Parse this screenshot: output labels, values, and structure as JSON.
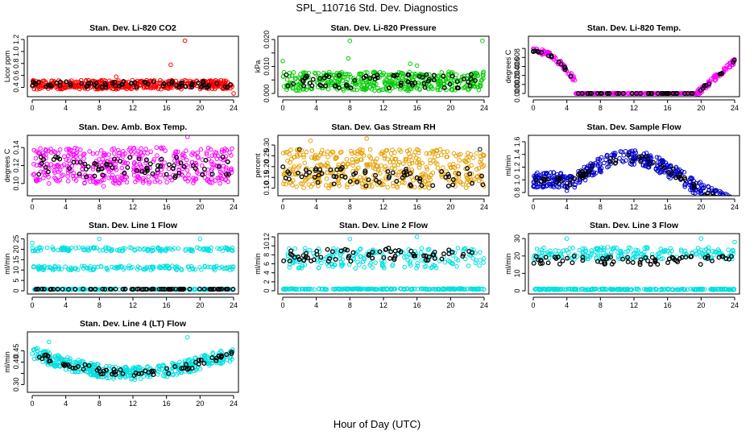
{
  "figure": {
    "title": "SPL_110716  Std. Dev. Diagnostics",
    "xlabel": "Hour of Day (UTC)"
  },
  "chart_data": [
    {
      "type": "scatter",
      "title": "Stan. Dev. Li-820 CO2",
      "ylabel": "Licor ppm",
      "xlim": [
        0,
        24
      ],
      "ylim": [
        0.3,
        1.2
      ],
      "xticks": [
        0,
        4,
        8,
        12,
        16,
        20,
        24
      ],
      "yticks": [
        0.4,
        0.6,
        0.8,
        1.0,
        1.2
      ],
      "ytick_labels": [
        "0.4",
        "0.6",
        "0.8",
        "1.0",
        "1.2"
      ],
      "series": [
        {
          "color": "#ff0000",
          "bands": [
            [
              0.37,
              0.52
            ]
          ],
          "outliers": [
            [
              18.2,
              1.18
            ],
            [
              16.5,
              0.78
            ],
            [
              24,
              0.3
            ],
            [
              10,
              0.58
            ]
          ]
        },
        {
          "color": "#000000",
          "bands": [
            [
              0.4,
              0.5
            ]
          ],
          "outliers": []
        }
      ]
    },
    {
      "type": "scatter",
      "title": "Stan. Dev. Li-820 Pressure",
      "ylabel": "kPa",
      "xlim": [
        0,
        24
      ],
      "ylim": [
        0,
        0.02
      ],
      "xticks": [
        0,
        4,
        8,
        12,
        16,
        20,
        24
      ],
      "yticks": [
        0,
        0.005,
        0.01,
        0.015,
        0.02
      ],
      "ytick_labels": [
        "0.000",
        "",
        "0.010",
        "",
        "0.020"
      ],
      "series": [
        {
          "color": "#00cc00",
          "bands": [
            [
              0.001,
              0.008
            ]
          ],
          "outliers": [
            [
              8,
              0.0195
            ],
            [
              16,
              0.0103
            ],
            [
              23.8,
              0.0195
            ],
            [
              0,
              0.012
            ],
            [
              7.8,
              0.013
            ],
            [
              15.2,
              0.011
            ]
          ]
        },
        {
          "color": "#000000",
          "bands": [
            [
              0.002,
              0.007
            ]
          ],
          "outliers": []
        }
      ]
    },
    {
      "type": "scatter",
      "title": "Stan. Dev. Li-820 Temp.",
      "ylabel": "degrees C",
      "xlim": [
        0,
        24
      ],
      "ylim": [
        0,
        0.012
      ],
      "xticks": [
        0,
        4,
        8,
        12,
        16,
        20,
        24
      ],
      "yticks": [
        0,
        0.002,
        0.004,
        0.006,
        0.008,
        0.01
      ],
      "ytick_labels": [
        "0.000",
        "0.002",
        "0.004",
        "0.006",
        "0.008",
        ""
      ],
      "curve": "temp",
      "series": [
        {
          "color": "#ff00ff",
          "bands": [],
          "outliers": []
        },
        {
          "color": "#000000",
          "bands": [],
          "outliers": []
        }
      ]
    },
    {
      "type": "scatter",
      "title": "Stan. Dev. Amb. Box Temp.",
      "ylabel": "degrees C",
      "xlim": [
        0,
        24
      ],
      "ylim": [
        0.09,
        0.15
      ],
      "xticks": [
        0,
        4,
        8,
        12,
        16,
        20,
        24
      ],
      "yticks": [
        0.1,
        0.12,
        0.14
      ],
      "ytick_labels": [
        "0.10",
        "0.12",
        "0.14"
      ],
      "series": [
        {
          "color": "#ff00ff",
          "bands": [
            [
              0.1,
              0.14
            ]
          ],
          "outliers": [
            [
              18.5,
              0.152
            ],
            [
              8.5,
              0.097
            ],
            [
              2,
              0.1
            ]
          ]
        },
        {
          "color": "#000000",
          "bands": [
            [
              0.105,
              0.13
            ]
          ],
          "outliers": []
        }
      ]
    },
    {
      "type": "scatter",
      "title": "Stan. Dev. Gas Stream RH",
      "ylabel": "percent",
      "xlim": [
        0,
        24
      ],
      "ylim": [
        0.08,
        0.33
      ],
      "xticks": [
        0,
        4,
        8,
        12,
        16,
        20,
        24
      ],
      "yticks": [
        0.1,
        0.15,
        0.2,
        0.25,
        0.3
      ],
      "ytick_labels": [
        "0.10",
        "0.15",
        "0.20",
        "0.25",
        "0.30"
      ],
      "series": [
        {
          "color": "#e6a000",
          "bands": [
            [
              0.1,
              0.28
            ]
          ],
          "outliers": [
            [
              10,
              0.33
            ],
            [
              3.3,
              0.32
            ]
          ]
        },
        {
          "color": "#000000",
          "bands": [
            [
              0.11,
              0.2
            ]
          ],
          "outliers": [
            [
              2,
              0.28
            ],
            [
              23.5,
              0.28
            ]
          ]
        }
      ]
    },
    {
      "type": "scatter",
      "title": "Stan. Dev. Sample Flow",
      "ylabel": "ml/min",
      "xlim": [
        0,
        24
      ],
      "ylim": [
        0.8,
        1.65
      ],
      "xticks": [
        0,
        4,
        8,
        12,
        16,
        20,
        24
      ],
      "yticks": [
        0.8,
        1.0,
        1.2,
        1.4,
        1.6
      ],
      "ytick_labels": [
        "0.8",
        "1.0",
        "1.2",
        "1.4",
        "1.6"
      ],
      "curve": "flow",
      "series": [
        {
          "color": "#0000cc",
          "bands": [],
          "outliers": []
        },
        {
          "color": "#000000",
          "bands": [],
          "outliers": []
        }
      ]
    },
    {
      "type": "scatter",
      "title": "Stan. Dev. Line 1 Flow",
      "ylabel": "ml/min",
      "xlim": [
        0,
        24
      ],
      "ylim": [
        0,
        26
      ],
      "xticks": [
        0,
        4,
        8,
        12,
        16,
        20,
        24
      ],
      "yticks": [
        0,
        5,
        10,
        15,
        20,
        25
      ],
      "ytick_labels": [
        "0",
        "5",
        "10",
        "15",
        "20",
        "25"
      ],
      "series": [
        {
          "color": "#00e0e0",
          "bands": [
            [
              19,
              21
            ],
            [
              10,
              12
            ],
            [
              0.6,
              0.9
            ]
          ],
          "outliers": [
            [
              8,
              25
            ],
            [
              20,
              25
            ],
            [
              0,
              23
            ]
          ]
        },
        {
          "color": "#000000",
          "bands": [
            [
              0.7,
              0.9
            ]
          ],
          "outliers": []
        }
      ]
    },
    {
      "type": "scatter",
      "title": "Stan. Dev. Line 2 Flow",
      "ylabel": "ml/min",
      "xlim": [
        0,
        24
      ],
      "ylim": [
        0,
        12
      ],
      "xticks": [
        0,
        4,
        8,
        12,
        16,
        20,
        24
      ],
      "yticks": [
        0,
        2,
        4,
        6,
        8,
        10,
        12
      ],
      "ytick_labels": [
        "0",
        "2",
        "4",
        "6",
        "8",
        "10",
        "12"
      ],
      "series": [
        {
          "color": "#00e0e0",
          "bands": [
            [
              5,
              9.5
            ],
            [
              0.3,
              0.5
            ]
          ],
          "outliers": [
            [
              16,
              12
            ],
            [
              8,
              11.5
            ]
          ]
        },
        {
          "color": "#000000",
          "bands": [
            [
              6.5,
              9.5
            ]
          ],
          "outliers": []
        }
      ]
    },
    {
      "type": "scatter",
      "title": "Stan. Dev. Line 3 Flow",
      "ylabel": "ml/min",
      "xlim": [
        0,
        24
      ],
      "ylim": [
        0,
        31
      ],
      "xticks": [
        0,
        4,
        8,
        12,
        16,
        20,
        24
      ],
      "yticks": [
        0,
        10,
        20,
        30
      ],
      "ytick_labels": [
        "0",
        "10",
        "20",
        "30"
      ],
      "series": [
        {
          "color": "#00e0e0",
          "bands": [
            [
              18,
              25
            ],
            [
              0.5,
              1.2
            ]
          ],
          "outliers": [
            [
              4,
              30
            ],
            [
              20,
              30
            ],
            [
              24,
              28
            ]
          ]
        },
        {
          "color": "#000000",
          "bands": [
            [
              15,
              20
            ]
          ],
          "outliers": []
        }
      ]
    },
    {
      "type": "scatter",
      "title": "Stan. Dev. Line 4 (LT) Flow",
      "ylabel": "ml/min",
      "xlim": [
        0,
        24
      ],
      "ylim": [
        0.28,
        0.52
      ],
      "xticks": [
        0,
        4,
        8,
        12,
        16,
        20,
        24
      ],
      "yticks": [
        0.3,
        0.35,
        0.4,
        0.45
      ],
      "ytick_labels": [
        "0.30",
        "",
        "0.40",
        "0.45"
      ],
      "curve": "lt",
      "series": [
        {
          "color": "#00e0e0",
          "bands": [],
          "outliers": [
            [
              18.5,
              0.51
            ],
            [
              2,
              0.49
            ]
          ]
        },
        {
          "color": "#000000",
          "bands": [],
          "outliers": []
        }
      ]
    }
  ]
}
